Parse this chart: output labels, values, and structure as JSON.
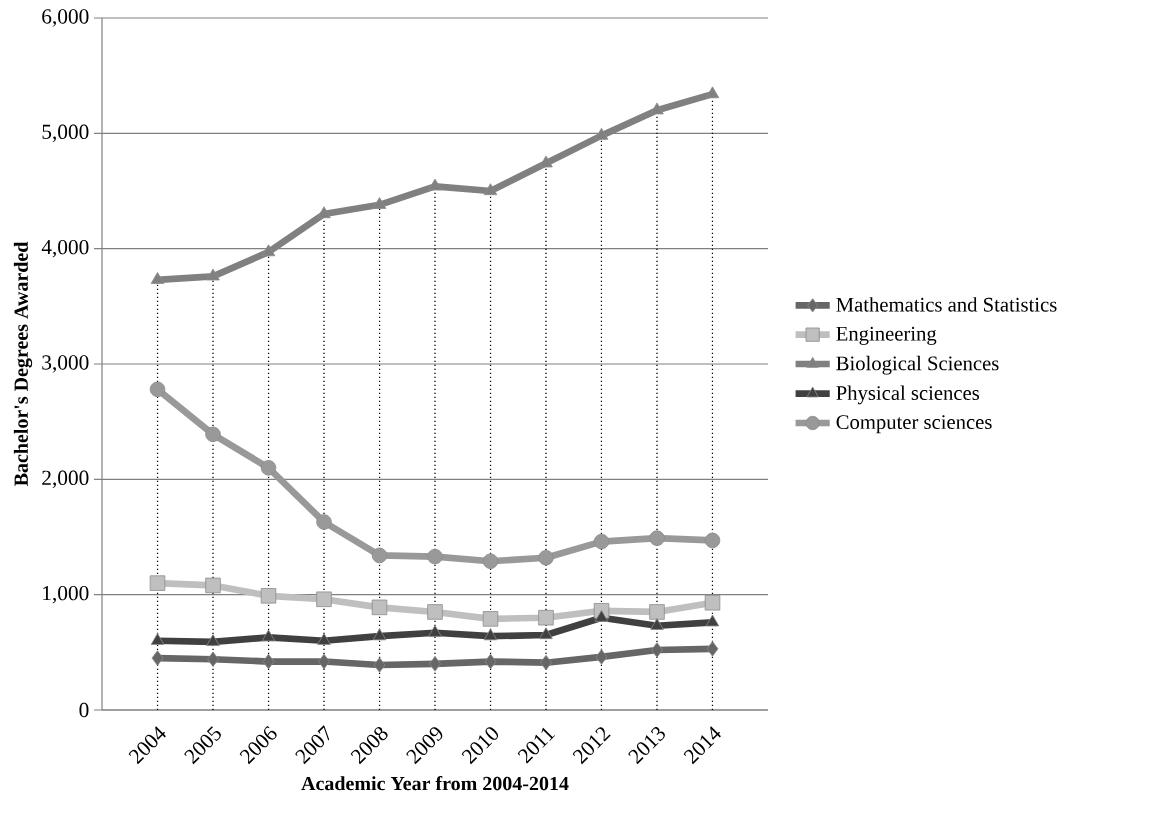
{
  "chart_data": {
    "type": "line",
    "xlabel": "Academic Year from 2004-2014",
    "ylabel": "Bachelor's Degrees Awarded",
    "categories": [
      "2004",
      "2005",
      "2006",
      "2007",
      "2008",
      "2009",
      "2010",
      "2011",
      "2012",
      "2013",
      "2014"
    ],
    "series": [
      {
        "name": "Mathematics and Statistics",
        "color": "#666666",
        "marker": "diamond",
        "values": [
          450,
          440,
          420,
          420,
          390,
          400,
          420,
          410,
          460,
          520,
          530
        ]
      },
      {
        "name": "Engineering",
        "color": "#bfbfbf",
        "marker": "square",
        "values": [
          1100,
          1080,
          990,
          960,
          890,
          850,
          790,
          800,
          860,
          850,
          930
        ]
      },
      {
        "name": "Biological Sciences",
        "color": "#808080",
        "marker": "triangle",
        "values": [
          3730,
          3760,
          3970,
          4300,
          4380,
          4540,
          4500,
          4740,
          4980,
          5200,
          5340
        ]
      },
      {
        "name": "Physical sciences",
        "color": "#404040",
        "marker": "triangle",
        "values": [
          600,
          590,
          630,
          600,
          640,
          670,
          640,
          650,
          800,
          730,
          760
        ]
      },
      {
        "name": "Computer sciences",
        "color": "#999999",
        "marker": "circle",
        "values": [
          2780,
          2390,
          2100,
          1630,
          1340,
          1330,
          1290,
          1320,
          1460,
          1490,
          1470
        ]
      }
    ],
    "ylim": [
      0,
      6000
    ],
    "yticks": [
      0,
      {
        "value": 1000,
        "label": "1,000"
      },
      {
        "value": 2000,
        "label": "2,000"
      },
      {
        "value": 3000,
        "label": "3,000"
      },
      {
        "value": 4000,
        "label": "4,000"
      },
      {
        "value": 5000,
        "label": "5,000"
      },
      {
        "value": 6000,
        "label": "6,000"
      }
    ],
    "ref_lines": [
      {
        "axis": "x",
        "value": "2004",
        "line_style": "dotted",
        "color": "#000000"
      },
      {
        "axis": "x",
        "value": "2005",
        "line_style": "dotted",
        "color": "#000000"
      },
      {
        "axis": "x",
        "value": "2006",
        "line_style": "dotted",
        "color": "#000000"
      },
      {
        "axis": "x",
        "value": "2007",
        "line_style": "dotted",
        "color": "#000000"
      },
      {
        "axis": "x",
        "value": "2008",
        "line_style": "dotted",
        "color": "#000000"
      },
      {
        "axis": "x",
        "value": "2009",
        "line_style": "dotted",
        "color": "#000000"
      },
      {
        "axis": "x",
        "value": "2010",
        "line_style": "dotted",
        "color": "#000000"
      },
      {
        "axis": "x",
        "value": "2011",
        "line_style": "dotted",
        "color": "#000000"
      },
      {
        "axis": "x",
        "value": "2012",
        "line_style": "dotted",
        "color": "#000000"
      },
      {
        "axis": "x",
        "value": "2013",
        "line_style": "dotted",
        "color": "#000000"
      },
      {
        "axis": "x",
        "value": "2014",
        "line_style": "dotted",
        "color": "#000000"
      }
    ],
    "grid": "y",
    "legend": "right",
    "line_style": "solid"
  }
}
